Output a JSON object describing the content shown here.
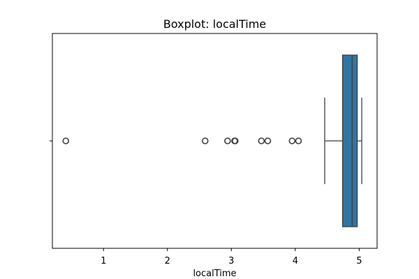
{
  "chart_data": {
    "type": "boxplot",
    "title": "Boxplot: localTime",
    "xlabel": "localTime",
    "ylabel": "",
    "xlim": [
      0.2,
      5.28
    ],
    "xticks": [
      1,
      2,
      3,
      4,
      5
    ],
    "orientation": "horizontal",
    "box": {
      "whisker_low": 4.46,
      "q1": 4.74,
      "median": 4.89,
      "q3": 4.97,
      "whisker_high": 5.04
    },
    "outliers": [
      0.41,
      2.59,
      2.94,
      3.05,
      3.06,
      3.47,
      3.57,
      3.95,
      4.05
    ],
    "colors": {
      "box_fill": "#3274a1",
      "line": "#3f3f3f",
      "axes": "#000000"
    },
    "grid": false
  }
}
